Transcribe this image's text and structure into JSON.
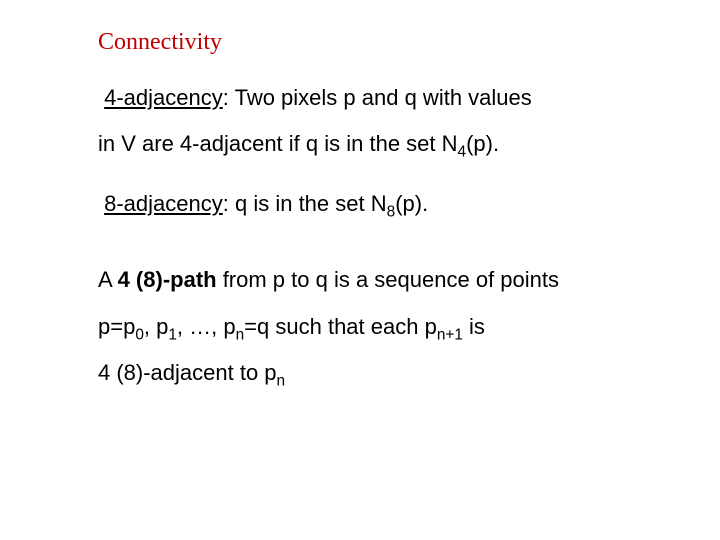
{
  "title": {
    "text": "Connectivity",
    "color": "#c00000"
  },
  "lines": {
    "l1_term": "4-adjacency",
    "l1_rest": ": Two pixels p and q with values",
    "l2": "in V are 4-adjacent if q is in the set N",
    "l2_sub": "4",
    "l2_tail": "(p).",
    "l3_term": "8-adjacency",
    "l3_rest": ": q is in the set N",
    "l3_sub": "8",
    "l3_tail": "(p).",
    "l4_pre": "A ",
    "l4_bold": "4 (8)-path",
    "l4_rest": " from p to q is a sequence of points",
    "l5_a": "p=p",
    "l5_s0": "0",
    "l5_b": ", p",
    "l5_s1": "1",
    "l5_c": ", …, p",
    "l5_sn": "n",
    "l5_d": "=q such that each p",
    "l5_sn1": "n+1",
    "l5_e": " is",
    "l6_a": "4 (8)-adjacent to p",
    "l6_sub": "n"
  }
}
